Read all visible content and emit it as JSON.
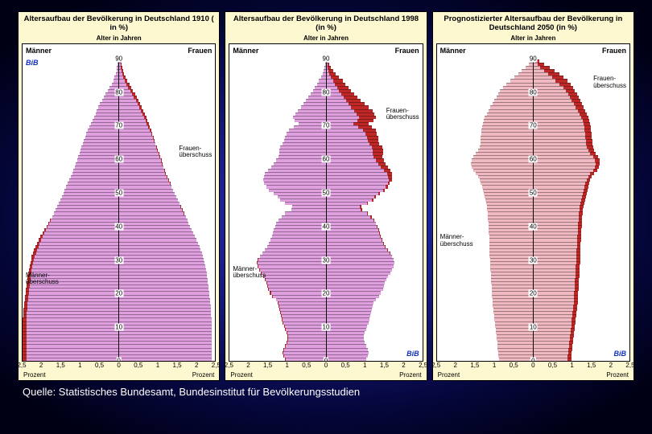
{
  "background": {
    "gradient_center": "#2830c8",
    "gradient_edge": "#000014"
  },
  "panel_bg": "#fdf8d0",
  "chart_bg": "#ffffff",
  "bib_text": "BiB",
  "bib_color": "#1030c0",
  "source_line": "Quelle: Statistisches Bundesamt, Bundesinstitut für Bevölkerungsstudien",
  "y_axis_label": "Alter in Jahren",
  "y_ticks": [
    0,
    10,
    20,
    30,
    40,
    50,
    60,
    70,
    80,
    90
  ],
  "x_axis_label": "Prozent",
  "x_ticks": [
    2.5,
    2.0,
    1.5,
    1.0,
    0.5,
    0,
    0.5,
    1.0,
    1.5,
    2.0,
    2.5
  ],
  "x_max": 2.5,
  "sides": {
    "men": "Männer",
    "women": "Frauen"
  },
  "surplus": {
    "men": "Männer-\nüberschuss",
    "women": "Frauen-\nüberschuss"
  },
  "panels": [
    {
      "id": "p1910",
      "title": "Altersaufbau der Bevölkerung in Deutschland\n1910 ( in %)",
      "base_color": "#e0a0e0",
      "overflow_color": "#c02828",
      "bib_pos": "topleft",
      "surplus_labels": [
        {
          "which": "women",
          "top_pct": 32,
          "side": "right"
        },
        {
          "which": "men",
          "top_pct": 72,
          "side": "left"
        }
      ],
      "men": [
        0.02,
        0.03,
        0.04,
        0.05,
        0.07,
        0.1,
        0.14,
        0.18,
        0.23,
        0.28,
        0.33,
        0.38,
        0.43,
        0.48,
        0.52,
        0.56,
        0.6,
        0.64,
        0.68,
        0.72,
        0.76,
        0.8,
        0.84,
        0.87,
        0.9,
        0.93,
        0.96,
        0.99,
        1.02,
        1.05,
        1.08,
        1.11,
        1.14,
        1.17,
        1.2,
        1.24,
        1.28,
        1.32,
        1.36,
        1.4,
        1.44,
        1.48,
        1.52,
        1.56,
        1.6,
        1.64,
        1.68,
        1.73,
        1.78,
        1.83,
        1.88,
        1.93,
        1.98,
        2.03,
        2.08,
        2.12,
        2.16,
        2.2,
        2.23,
        2.26,
        2.28,
        2.3,
        2.32,
        2.34,
        2.36,
        2.37,
        2.38,
        2.39,
        2.4,
        2.41,
        2.42,
        2.43,
        2.44,
        2.45,
        2.46,
        2.47,
        2.48,
        2.48,
        2.49,
        2.49,
        2.5,
        2.5,
        2.5,
        2.5,
        2.5,
        2.5,
        2.5,
        2.5,
        2.5,
        2.5,
        2.5
      ],
      "women": [
        0.04,
        0.06,
        0.08,
        0.1,
        0.13,
        0.17,
        0.21,
        0.26,
        0.31,
        0.36,
        0.41,
        0.46,
        0.51,
        0.55,
        0.59,
        0.63,
        0.67,
        0.71,
        0.74,
        0.77,
        0.8,
        0.83,
        0.86,
        0.89,
        0.92,
        0.95,
        0.98,
        1.01,
        1.04,
        1.07,
        1.1,
        1.13,
        1.16,
        1.19,
        1.22,
        1.25,
        1.29,
        1.33,
        1.37,
        1.41,
        1.45,
        1.49,
        1.53,
        1.57,
        1.61,
        1.65,
        1.69,
        1.73,
        1.77,
        1.81,
        1.85,
        1.89,
        1.93,
        1.97,
        2.01,
        2.05,
        2.09,
        2.12,
        2.15,
        2.18,
        2.2,
        2.22,
        2.24,
        2.26,
        2.28,
        2.29,
        2.3,
        2.31,
        2.32,
        2.33,
        2.34,
        2.35,
        2.36,
        2.37,
        2.38,
        2.38,
        2.39,
        2.39,
        2.4,
        2.4,
        2.4,
        2.4,
        2.4,
        2.4,
        2.4,
        2.4,
        2.4,
        2.4,
        2.4,
        2.4,
        2.4
      ]
    },
    {
      "id": "p1998",
      "title": "Altersaufbau der Bevölkerung in Deutschland\n1998 (in %)",
      "base_color": "#e0a0e0",
      "overflow_color": "#c02828",
      "bib_pos": "botright",
      "surplus_labels": [
        {
          "which": "women",
          "top_pct": 20,
          "side": "right"
        },
        {
          "which": "men",
          "top_pct": 70,
          "side": "left"
        }
      ],
      "men": [
        0.01,
        0.02,
        0.03,
        0.05,
        0.08,
        0.12,
        0.17,
        0.23,
        0.28,
        0.33,
        0.38,
        0.45,
        0.52,
        0.58,
        0.65,
        0.72,
        0.78,
        0.85,
        0.8,
        0.7,
        0.82,
        0.95,
        1.02,
        1.05,
        1.08,
        1.12,
        1.18,
        1.2,
        1.2,
        1.22,
        1.28,
        1.35,
        1.42,
        1.5,
        1.58,
        1.6,
        1.62,
        1.6,
        1.55,
        1.48,
        1.35,
        1.25,
        1.18,
        1.05,
        0.88,
        0.9,
        1.05,
        1.15,
        1.22,
        1.28,
        1.32,
        1.35,
        1.38,
        1.4,
        1.43,
        1.47,
        1.52,
        1.58,
        1.65,
        1.72,
        1.78,
        1.8,
        1.78,
        1.74,
        1.68,
        1.62,
        1.58,
        1.55,
        1.52,
        1.5,
        1.45,
        1.4,
        1.3,
        1.25,
        1.22,
        1.2,
        1.18,
        1.16,
        1.14,
        1.12,
        1.08,
        1.05,
        1.02,
        1.0,
        1.0,
        1.02,
        1.05,
        1.1,
        1.12,
        1.1,
        1.05
      ],
      "women": [
        0.04,
        0.07,
        0.12,
        0.18,
        0.25,
        0.33,
        0.42,
        0.5,
        0.58,
        0.65,
        0.72,
        0.8,
        0.9,
        1.0,
        1.1,
        1.2,
        1.25,
        1.28,
        1.22,
        1.1,
        1.18,
        1.28,
        1.32,
        1.35,
        1.35,
        1.38,
        1.45,
        1.48,
        1.48,
        1.46,
        1.5,
        1.55,
        1.6,
        1.66,
        1.72,
        1.72,
        1.7,
        1.65,
        1.6,
        1.52,
        1.4,
        1.3,
        1.22,
        1.08,
        0.92,
        0.94,
        1.08,
        1.18,
        1.25,
        1.3,
        1.34,
        1.37,
        1.4,
        1.42,
        1.46,
        1.5,
        1.55,
        1.6,
        1.66,
        1.72,
        1.76,
        1.78,
        1.76,
        1.72,
        1.66,
        1.6,
        1.56,
        1.52,
        1.49,
        1.47,
        1.42,
        1.37,
        1.28,
        1.23,
        1.2,
        1.18,
        1.16,
        1.14,
        1.12,
        1.1,
        1.06,
        1.03,
        1.0,
        0.98,
        0.98,
        1.0,
        1.03,
        1.08,
        1.1,
        1.08,
        1.03
      ]
    },
    {
      "id": "p2050",
      "title": "Prognostizierter Altersaufbau der Bevölkerung in Deutschland 2050 (in %)",
      "base_color": "#f0b8c0",
      "overflow_color": "#c02828",
      "bib_pos": "botright",
      "surplus_labels": [
        {
          "which": "women",
          "top_pct": 10,
          "side": "right"
        },
        {
          "which": "men",
          "top_pct": 60,
          "side": "left"
        }
      ],
      "men": [
        0.05,
        0.1,
        0.18,
        0.28,
        0.38,
        0.48,
        0.58,
        0.68,
        0.78,
        0.85,
        0.9,
        0.95,
        1.0,
        1.05,
        1.1,
        1.15,
        1.2,
        1.25,
        1.28,
        1.3,
        1.32,
        1.33,
        1.34,
        1.35,
        1.36,
        1.37,
        1.38,
        1.42,
        1.48,
        1.55,
        1.6,
        1.62,
        1.6,
        1.55,
        1.48,
        1.42,
        1.38,
        1.35,
        1.32,
        1.3,
        1.28,
        1.26,
        1.24,
        1.22,
        1.2,
        1.19,
        1.18,
        1.17,
        1.17,
        1.16,
        1.16,
        1.15,
        1.15,
        1.14,
        1.14,
        1.13,
        1.13,
        1.12,
        1.12,
        1.12,
        1.11,
        1.11,
        1.1,
        1.1,
        1.09,
        1.09,
        1.08,
        1.08,
        1.07,
        1.07,
        1.06,
        1.06,
        1.05,
        1.05,
        1.04,
        1.03,
        1.02,
        1.01,
        1.0,
        0.99,
        0.98,
        0.97,
        0.96,
        0.95,
        0.94,
        0.93,
        0.92,
        0.91,
        0.9,
        0.89,
        0.88
      ],
      "women": [
        0.15,
        0.28,
        0.42,
        0.55,
        0.68,
        0.78,
        0.88,
        0.96,
        1.03,
        1.08,
        1.13,
        1.18,
        1.22,
        1.26,
        1.3,
        1.34,
        1.38,
        1.42,
        1.45,
        1.47,
        1.49,
        1.5,
        1.51,
        1.52,
        1.53,
        1.54,
        1.55,
        1.58,
        1.62,
        1.68,
        1.72,
        1.73,
        1.71,
        1.66,
        1.58,
        1.52,
        1.48,
        1.45,
        1.42,
        1.4,
        1.38,
        1.36,
        1.34,
        1.32,
        1.3,
        1.29,
        1.28,
        1.27,
        1.27,
        1.26,
        1.26,
        1.25,
        1.25,
        1.24,
        1.24,
        1.23,
        1.23,
        1.22,
        1.22,
        1.22,
        1.21,
        1.21,
        1.2,
        1.2,
        1.19,
        1.19,
        1.18,
        1.18,
        1.17,
        1.17,
        1.16,
        1.16,
        1.15,
        1.15,
        1.14,
        1.13,
        1.12,
        1.11,
        1.1,
        1.09,
        1.08,
        1.07,
        1.06,
        1.05,
        1.04,
        1.03,
        1.02,
        1.01,
        1.0,
        0.99,
        0.98
      ]
    }
  ]
}
